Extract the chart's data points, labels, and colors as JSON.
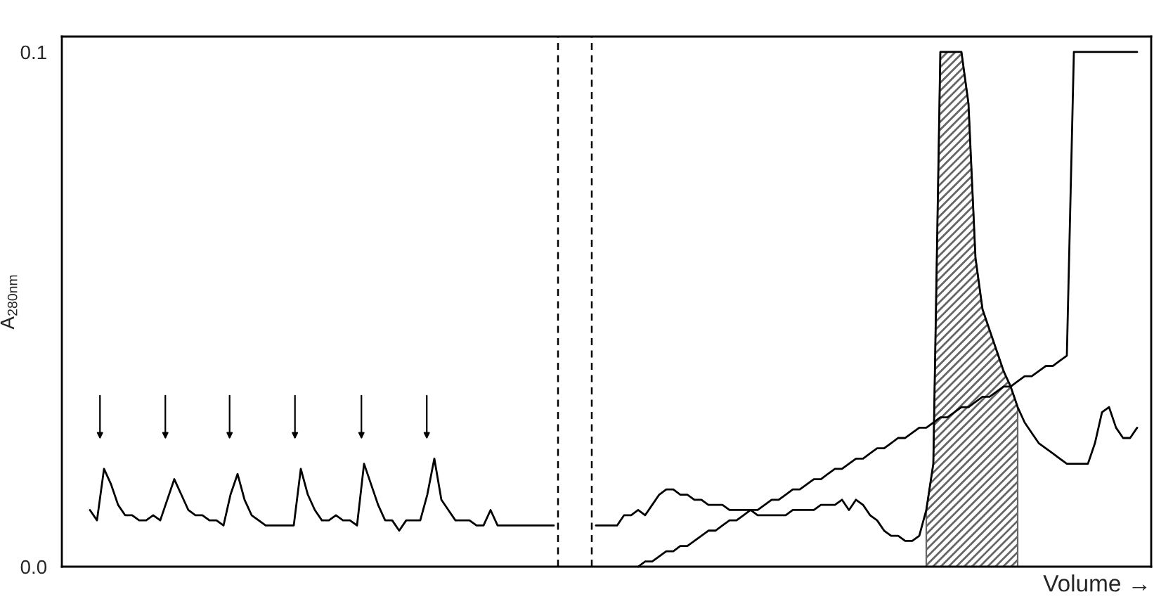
{
  "chart_data": {
    "type": "line",
    "ylabel": "A$_{280nm}$",
    "xlabel": "Volume →",
    "ylim": [
      0,
      0.103
    ],
    "yticks": [
      {
        "value": 0,
        "label": "0.0"
      },
      0.1
    ],
    "tick_labels": "y",
    "categories": [
      null,
      null,
      null,
      null,
      null,
      null,
      null,
      null,
      null,
      null,
      null,
      null,
      null,
      null,
      null,
      null,
      null,
      null,
      null,
      null,
      null,
      null,
      null,
      null,
      null,
      null,
      null,
      null,
      null,
      null,
      null,
      null,
      null,
      null,
      null,
      null,
      null,
      null,
      null,
      null,
      null,
      null,
      null,
      null,
      null,
      null,
      null,
      null,
      null,
      null,
      null,
      null,
      null,
      null,
      null,
      null,
      null,
      null,
      null,
      null,
      null,
      null,
      null,
      null,
      null,
      null,
      null,
      null,
      null,
      null,
      null,
      null,
      null,
      null,
      null,
      null,
      null,
      null,
      null,
      null,
      null,
      null,
      null,
      null,
      null,
      null,
      null,
      null,
      null,
      null,
      null,
      null,
      null,
      null,
      null,
      null,
      null,
      null,
      null,
      null,
      null,
      null,
      null,
      null,
      null,
      null,
      null,
      null,
      null,
      null,
      null,
      null,
      null,
      null,
      null,
      null,
      null,
      null,
      null,
      null,
      null,
      null,
      null,
      null,
      null,
      null,
      null,
      null,
      null,
      null,
      null,
      null,
      null,
      null,
      null,
      null,
      null,
      null,
      null,
      null,
      null,
      null,
      null,
      null,
      null,
      null,
      null,
      null,
      null,
      null,
      null,
      null,
      null,
      null,
      null,
      null
    ],
    "series": [
      {
        "color": "#000000",
        "values": [
          null,
          null,
          null,
          null,
          0.011,
          0.009,
          0.019,
          0.016,
          0.012,
          0.01,
          0.01,
          0.009,
          0.009,
          0.01,
          0.009,
          0.013,
          0.017,
          0.014,
          0.011,
          0.01,
          0.01,
          0.009,
          0.009,
          0.008,
          0.014,
          0.018,
          0.013,
          0.01,
          0.009,
          0.008,
          0.008,
          0.008,
          0.008,
          0.008,
          0.019,
          0.014,
          0.011,
          0.009,
          0.009,
          0.01,
          0.009,
          0.009,
          0.008,
          0.02,
          0.016,
          0.012,
          0.009,
          0.009,
          0.007,
          0.009,
          0.009,
          0.009,
          0.014,
          0.021,
          0.013,
          0.011,
          0.009,
          0.009,
          0.009,
          0.008,
          0.008,
          0.011,
          0.008,
          0.008,
          0.008,
          0.008,
          0.008,
          0.008,
          0.008,
          0.008,
          0.008,
          null,
          null,
          null,
          null,
          null,
          null,
          null,
          null,
          null,
          null,
          null,
          null,
          null,
          null,
          null,
          null,
          null,
          null,
          null,
          null,
          null,
          null,
          null,
          null,
          null,
          null,
          null,
          null,
          null,
          null,
          null,
          null,
          null,
          null,
          null,
          null,
          null,
          null,
          null,
          null,
          null,
          null,
          null,
          null,
          null,
          null,
          null,
          null,
          null,
          null,
          null,
          null,
          null,
          null,
          null,
          null,
          null,
          null,
          null,
          null,
          null,
          null,
          null,
          null,
          null,
          null,
          null,
          null,
          null,
          null,
          null,
          null,
          null,
          null,
          null,
          null,
          null,
          null,
          null,
          null,
          null,
          null,
          null,
          null,
          null
        ]
      },
      {
        "type": "area",
        "color": "#666666",
        "values": [
          null,
          null,
          null,
          null,
          null,
          null,
          null,
          null,
          null,
          null,
          null,
          null,
          null,
          null,
          null,
          null,
          null,
          null,
          null,
          null,
          null,
          null,
          null,
          null,
          null,
          null,
          null,
          null,
          null,
          null,
          null,
          null,
          null,
          null,
          null,
          null,
          null,
          null,
          null,
          null,
          null,
          null,
          null,
          null,
          null,
          null,
          null,
          null,
          null,
          null,
          null,
          null,
          null,
          null,
          null,
          null,
          null,
          null,
          null,
          null,
          null,
          null,
          null,
          null,
          null,
          null,
          null,
          null,
          null,
          null,
          null,
          null,
          null,
          null,
          null,
          null,
          null,
          null,
          null,
          null,
          null,
          null,
          null,
          null,
          null,
          null,
          null,
          null,
          null,
          null,
          null,
          null,
          null,
          null,
          null,
          null,
          null,
          null,
          null,
          null,
          null,
          null,
          null,
          null,
          null,
          null,
          null,
          null,
          null,
          null,
          null,
          null,
          null,
          null,
          null,
          null,
          null,
          null,
          null,
          null,
          null,
          null,
          null,
          0.011,
          0.02,
          0.1,
          0.1,
          0.1,
          0.1,
          0.09,
          0.06,
          0.05,
          0.046,
          0.042,
          0.038,
          0.035,
          0.031,
          null,
          null,
          null,
          null,
          null,
          null,
          null,
          null,
          null,
          null,
          null,
          null,
          null,
          null,
          null,
          null,
          null,
          null,
          null
        ]
      },
      {
        "color": "#000000",
        "values": [
          null,
          null,
          null,
          null,
          null,
          null,
          null,
          null,
          null,
          null,
          null,
          null,
          null,
          null,
          null,
          null,
          null,
          null,
          null,
          null,
          null,
          null,
          null,
          null,
          null,
          null,
          null,
          null,
          null,
          null,
          null,
          null,
          null,
          null,
          null,
          null,
          null,
          null,
          null,
          null,
          null,
          null,
          null,
          null,
          null,
          null,
          null,
          null,
          null,
          null,
          null,
          null,
          null,
          null,
          null,
          null,
          null,
          null,
          null,
          null,
          null,
          null,
          null,
          null,
          null,
          null,
          null,
          null,
          null,
          null,
          null,
          null,
          null,
          null,
          null,
          null,
          0.008,
          0.008,
          0.008,
          0.008,
          0.01,
          0.01,
          0.011,
          0.01,
          0.012,
          0.014,
          0.015,
          0.015,
          0.014,
          0.014,
          0.013,
          0.013,
          0.012,
          0.012,
          0.012,
          0.011,
          0.011,
          0.011,
          0.011,
          0.01,
          0.01,
          0.01,
          0.01,
          0.01,
          0.011,
          0.011,
          0.011,
          0.011,
          0.012,
          0.012,
          0.012,
          0.013,
          0.011,
          0.013,
          0.012,
          0.01,
          0.009,
          0.007,
          0.006,
          0.006,
          0.005,
          0.005,
          0.006,
          0.011,
          0.02,
          0.1,
          0.1,
          0.1,
          0.1,
          0.09,
          0.06,
          0.05,
          0.046,
          0.042,
          0.038,
          0.035,
          0.031,
          0.028,
          0.026,
          0.024,
          0.023,
          0.022,
          0.021,
          0.02,
          0.02,
          0.02,
          0.02,
          0.024,
          0.03,
          0.031,
          0.027,
          0.025,
          0.025,
          0.027,
          null,
          null
        ]
      },
      {
        "color": "#000000",
        "values": [
          null,
          null,
          null,
          null,
          null,
          null,
          null,
          null,
          null,
          null,
          null,
          null,
          null,
          null,
          null,
          null,
          null,
          null,
          null,
          null,
          null,
          null,
          null,
          null,
          null,
          null,
          null,
          null,
          null,
          null,
          null,
          null,
          null,
          null,
          null,
          null,
          null,
          null,
          null,
          null,
          null,
          null,
          null,
          null,
          null,
          null,
          null,
          null,
          null,
          null,
          null,
          null,
          null,
          null,
          null,
          null,
          null,
          null,
          null,
          null,
          null,
          null,
          null,
          null,
          null,
          null,
          null,
          null,
          null,
          null,
          null,
          null,
          null,
          null,
          null,
          null,
          null,
          null,
          null,
          null,
          null,
          null,
          0.0,
          0.001,
          0.001,
          0.002,
          0.003,
          0.003,
          0.004,
          0.004,
          0.005,
          0.006,
          0.007,
          0.007,
          0.008,
          0.009,
          0.009,
          0.01,
          0.011,
          0.011,
          0.012,
          0.013,
          0.013,
          0.014,
          0.015,
          0.015,
          0.016,
          0.017,
          0.017,
          0.018,
          0.019,
          0.019,
          0.02,
          0.021,
          0.021,
          0.022,
          0.023,
          0.023,
          0.024,
          0.025,
          0.025,
          0.026,
          0.027,
          0.027,
          0.028,
          0.029,
          0.029,
          0.03,
          0.031,
          0.031,
          0.032,
          0.033,
          0.033,
          0.034,
          0.035,
          0.035,
          0.036,
          0.037,
          0.037,
          0.038,
          0.039,
          0.039,
          0.04,
          0.041,
          0.1,
          0.1,
          0.1,
          0.1,
          0.1,
          0.1,
          0.1,
          0.1,
          0.1,
          0.1,
          null,
          null
        ]
      }
    ]
  }
}
